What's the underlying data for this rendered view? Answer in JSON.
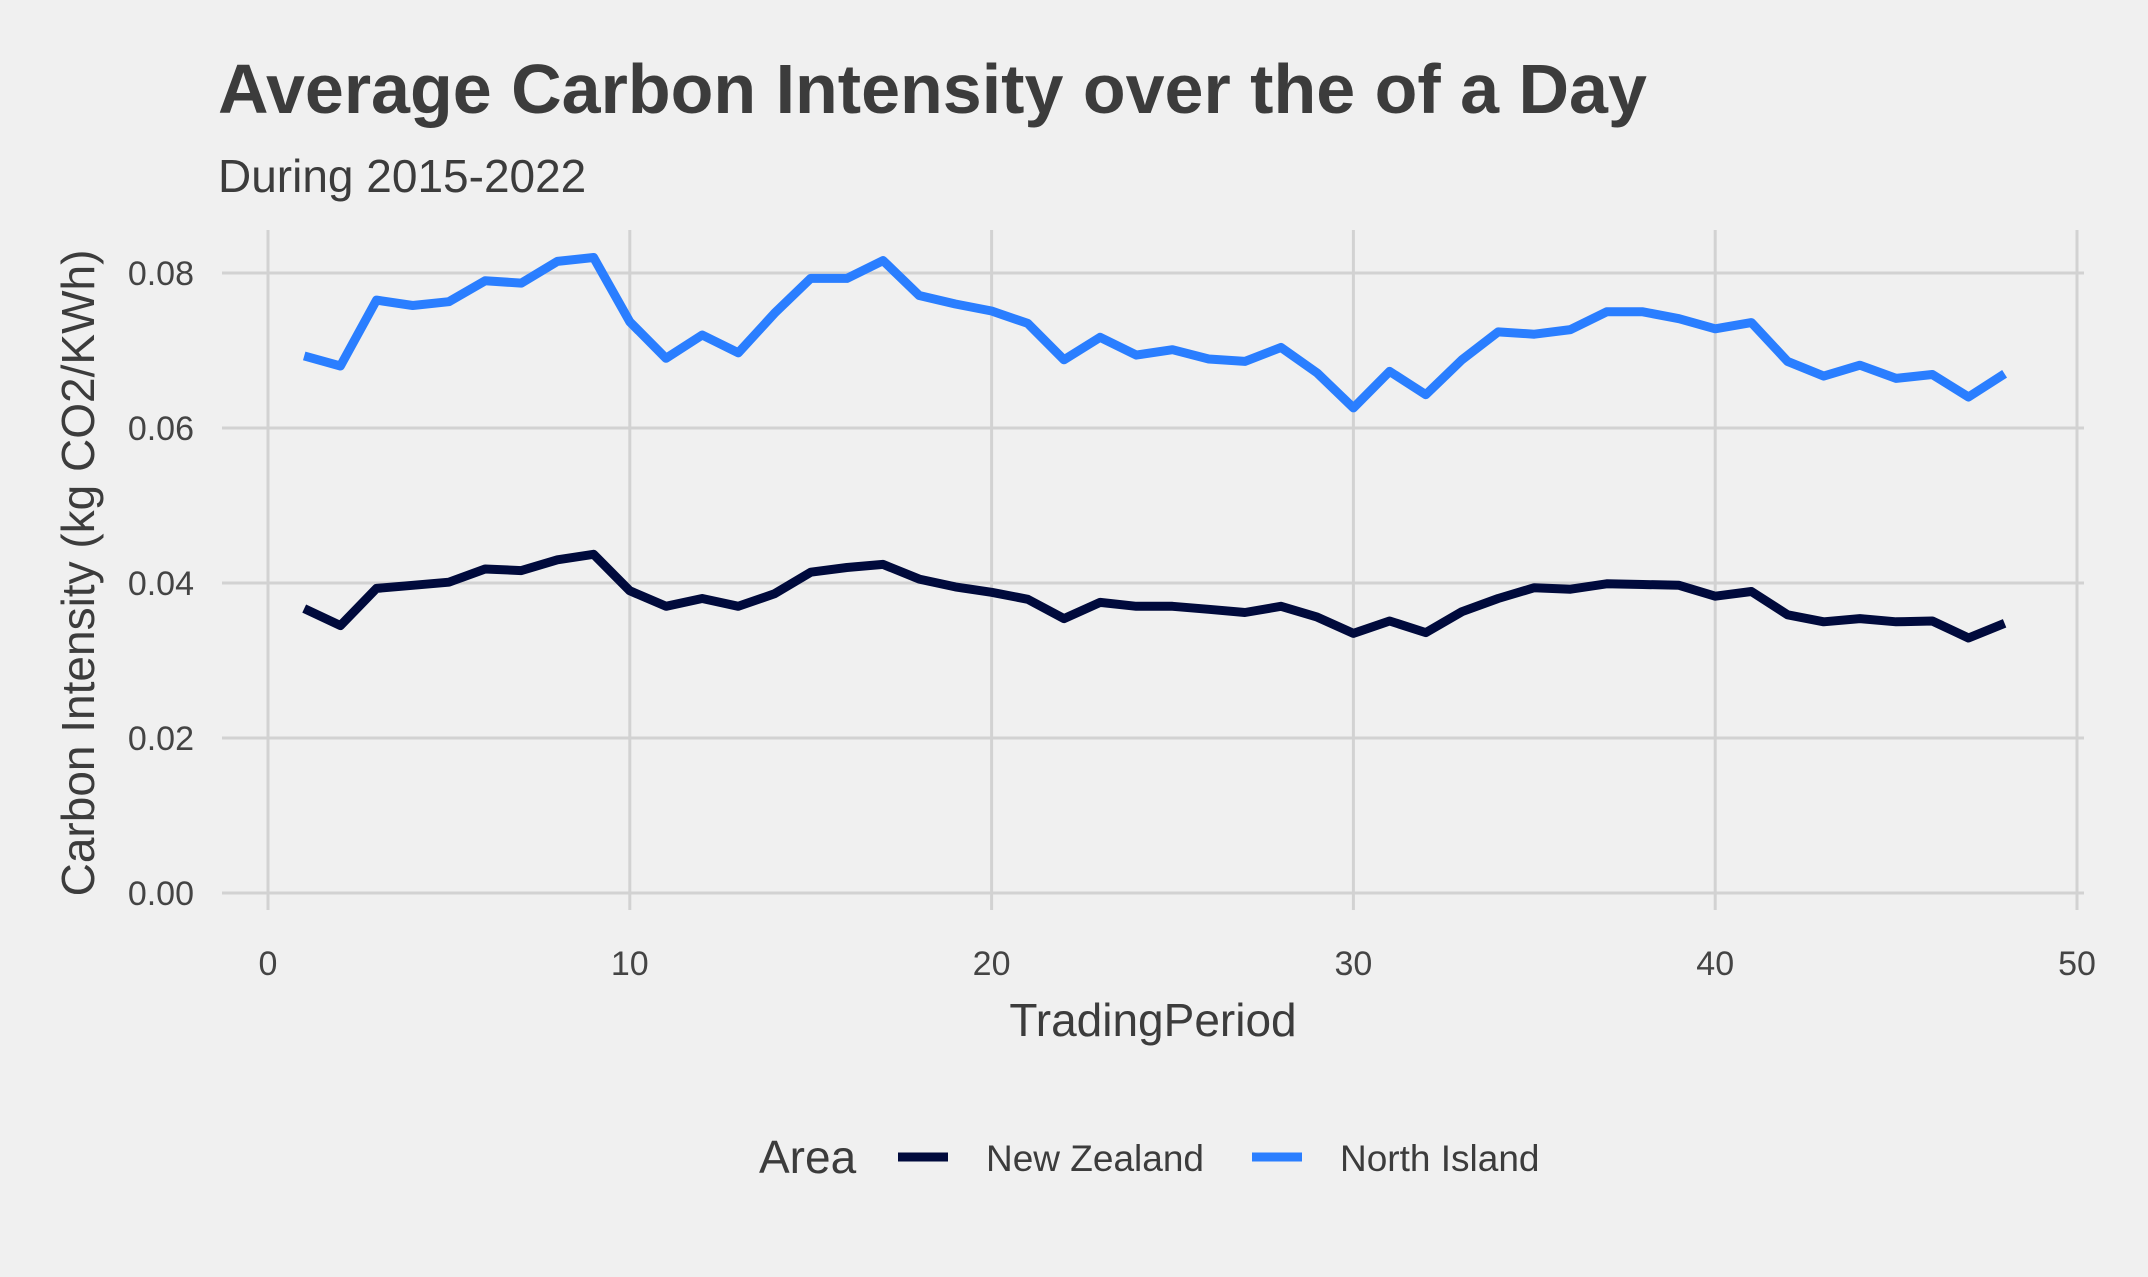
{
  "chart_data": {
    "type": "line",
    "title": "Average Carbon Intensity over the of a Day",
    "subtitle": "During 2015-2022",
    "xlabel": "TradingPeriod",
    "ylabel": "Carbon Intensity (kg CO2/KWh)",
    "xlim": [
      0,
      50
    ],
    "ylim": [
      0,
      0.08
    ],
    "x_ticks": [
      0,
      10,
      20,
      30,
      40,
      50
    ],
    "x_tick_labels": [
      "0",
      "10",
      "20",
      "30",
      "40",
      "50"
    ],
    "y_ticks": [
      0,
      0.02,
      0.04,
      0.06,
      0.08
    ],
    "y_tick_labels": [
      "0.00",
      "0.02",
      "0.04",
      "0.06",
      "0.08"
    ],
    "grid": true,
    "legend": {
      "title": "Area",
      "position": "bottom"
    },
    "x": [
      1,
      2,
      3,
      4,
      5,
      6,
      7,
      8,
      9,
      10,
      11,
      12,
      13,
      14,
      15,
      16,
      17,
      18,
      19,
      20,
      21,
      22,
      23,
      24,
      25,
      26,
      27,
      28,
      29,
      30,
      31,
      32,
      33,
      34,
      35,
      36,
      37,
      38,
      39,
      40,
      41,
      42,
      43,
      44,
      45,
      46,
      47,
      48
    ],
    "series": [
      {
        "name": "New Zealand",
        "color": "#000a3c",
        "values": [
          0.0367,
          0.0345,
          0.0393,
          0.0397,
          0.0401,
          0.0418,
          0.0416,
          0.043,
          0.0437,
          0.039,
          0.037,
          0.038,
          0.037,
          0.0386,
          0.0414,
          0.042,
          0.0424,
          0.0405,
          0.0395,
          0.0388,
          0.0379,
          0.0354,
          0.0375,
          0.037,
          0.037,
          0.0366,
          0.0362,
          0.037,
          0.0356,
          0.0335,
          0.0351,
          0.0336,
          0.0363,
          0.038,
          0.0394,
          0.0392,
          0.0399,
          0.0398,
          0.0397,
          0.0383,
          0.0389,
          0.0359,
          0.035,
          0.0354,
          0.035,
          0.0351,
          0.0329,
          0.0348
        ]
      },
      {
        "name": "North Island",
        "color": "#2a7eff",
        "values": [
          0.0693,
          0.068,
          0.0765,
          0.0758,
          0.0763,
          0.079,
          0.0787,
          0.0815,
          0.082,
          0.0737,
          0.069,
          0.072,
          0.0697,
          0.0748,
          0.0793,
          0.0793,
          0.0816,
          0.0771,
          0.076,
          0.0751,
          0.0735,
          0.0688,
          0.0717,
          0.0694,
          0.0701,
          0.0689,
          0.0686,
          0.0704,
          0.0671,
          0.0626,
          0.0673,
          0.0643,
          0.0688,
          0.0724,
          0.0721,
          0.0727,
          0.075,
          0.075,
          0.0741,
          0.0728,
          0.0736,
          0.0686,
          0.0667,
          0.0681,
          0.0664,
          0.0669,
          0.064,
          0.067
        ]
      }
    ]
  }
}
